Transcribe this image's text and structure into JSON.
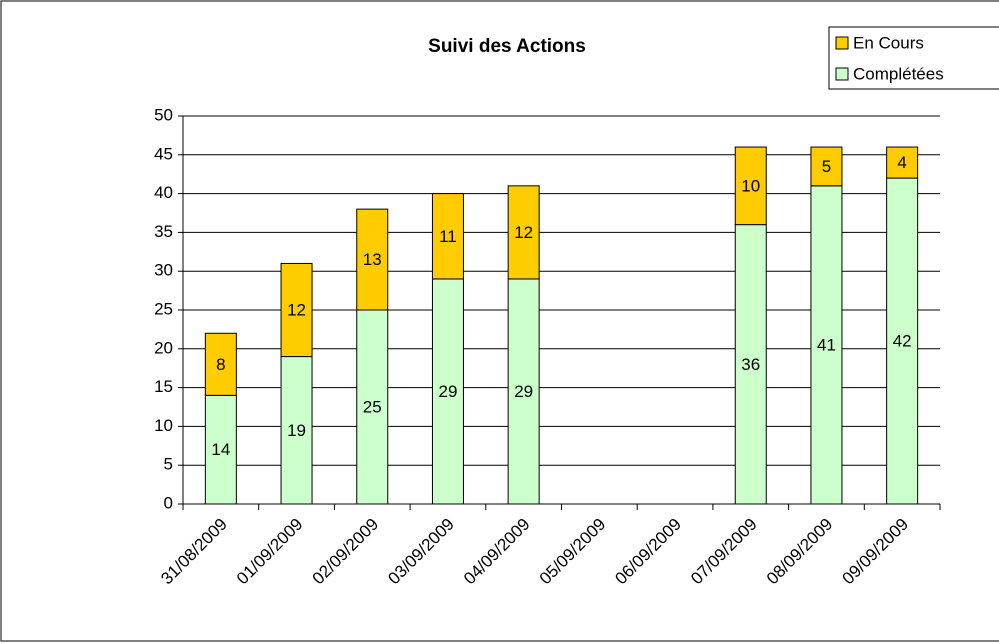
{
  "chart_data": {
    "type": "bar",
    "stacked": true,
    "title": "Suivi des Actions",
    "categories": [
      "31/08/2009",
      "01/09/2009",
      "02/09/2009",
      "03/09/2009",
      "04/09/2009",
      "05/09/2009",
      "06/09/2009",
      "07/09/2009",
      "08/09/2009",
      "09/09/2009"
    ],
    "series": [
      {
        "name": "Complétées",
        "color": "#ccffcc",
        "values": [
          14,
          19,
          25,
          29,
          29,
          null,
          null,
          36,
          41,
          42
        ]
      },
      {
        "name": "En Cours",
        "color": "#ffcc00",
        "values": [
          8,
          12,
          13,
          11,
          12,
          null,
          null,
          10,
          5,
          4
        ]
      }
    ],
    "ylim": [
      0,
      50
    ],
    "yticks": [
      0,
      5,
      10,
      15,
      20,
      25,
      30,
      35,
      40,
      45,
      50
    ],
    "grid": true,
    "legend": "top-right"
  }
}
